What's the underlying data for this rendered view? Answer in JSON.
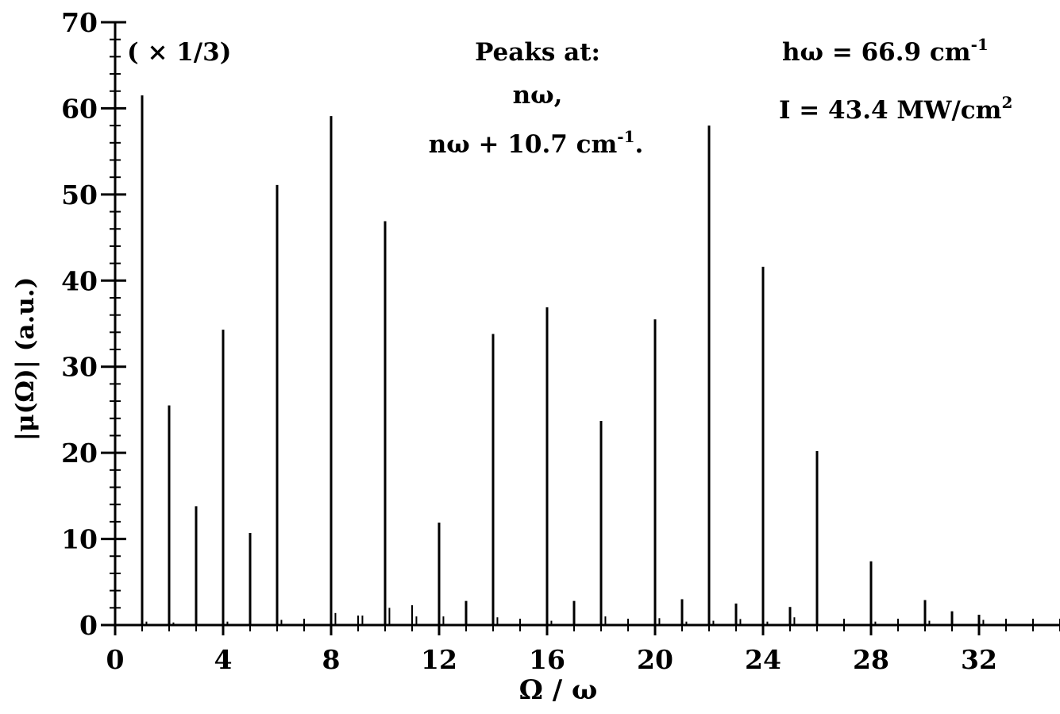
{
  "chart_data": {
    "type": "bar",
    "xlabel": "Ω / ω",
    "ylabel": "|μ(Ω)| (a.u.)",
    "xlim": [
      0,
      35
    ],
    "ylim": [
      0,
      70
    ],
    "x_ticks": [
      0,
      4,
      8,
      12,
      16,
      20,
      24,
      28,
      32
    ],
    "y_ticks": [
      0,
      10,
      20,
      30,
      40,
      50,
      60,
      70
    ],
    "x_tick_labels": [
      "0",
      "4",
      "8",
      "12",
      "16",
      "20",
      "24",
      "28",
      "32"
    ],
    "y_tick_labels": [
      "0",
      "10",
      "20",
      "30",
      "40",
      "50",
      "60",
      "70"
    ],
    "x_minor_step": 1,
    "y_minor_step": 2,
    "annotations": {
      "scale_note": "( × 1/3)",
      "peaks_line1": "Peaks at:",
      "peaks_line2": "nω,",
      "peaks_line3_base": "nω + 10.7 cm",
      "peaks_line3_sup": "-1",
      "peaks_line3_tail": ".",
      "hw_base": "hω = 66.9 cm",
      "hw_sup": "-1",
      "intensity_base": "I = 43.4 MW/cm",
      "intensity_sup": "2"
    },
    "series": [
      {
        "x": [
          1,
          2,
          3,
          4,
          5,
          6,
          8,
          10,
          12,
          13,
          14,
          16,
          17,
          18,
          20,
          21,
          22,
          23,
          24,
          25,
          26,
          28,
          30,
          31
        ],
        "values": [
          61.5,
          25.5,
          13.8,
          34.3,
          10.7,
          51.1,
          59.1,
          46.9,
          11.9,
          2.8,
          33.8,
          36.9,
          2.8,
          23.7,
          35.5,
          3.0,
          58.0,
          2.5,
          41.6,
          2.1,
          20.2,
          7.4,
          2.9,
          1.6
        ]
      },
      {
        "x": [
          1.16,
          2.16,
          4.16,
          6.16,
          7.0,
          8.16,
          9.0,
          9.16,
          10.16,
          11.0,
          11.16,
          12.16,
          14.16,
          15.0,
          16.16,
          18.16,
          19.0,
          20.16,
          21.16,
          22.16,
          23.16,
          24.16,
          25.16,
          27.0,
          28.16,
          30.16,
          31.0,
          32.0,
          32.16,
          33.0
        ],
        "values": [
          0.4,
          0.3,
          0.4,
          0.6,
          0.4,
          1.4,
          1.1,
          1.1,
          2.0,
          2.3,
          1.0,
          1.0,
          0.9,
          0.7,
          0.5,
          1.0,
          0.4,
          0.8,
          0.4,
          0.5,
          0.7,
          0.4,
          0.9,
          0.6,
          0.4,
          0.5,
          1.0,
          0.8,
          0.6,
          0.5
        ]
      }
    ]
  }
}
